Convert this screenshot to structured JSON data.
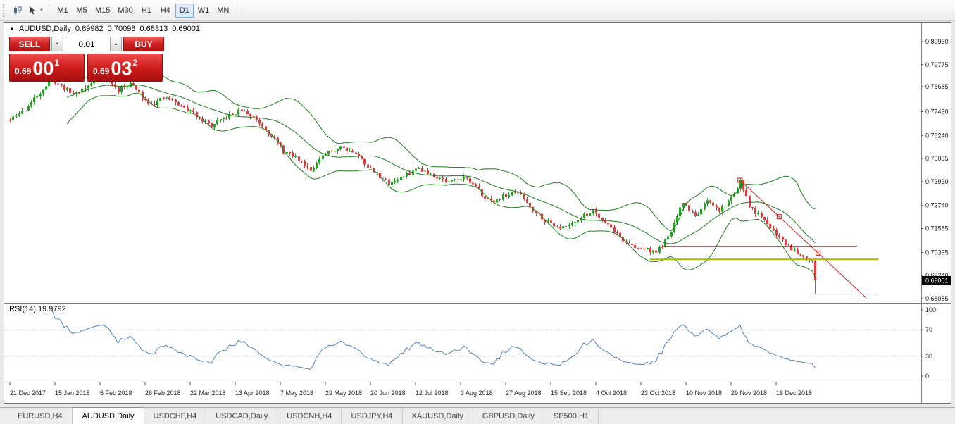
{
  "toolbar": {
    "timeframes": [
      "M1",
      "M5",
      "M15",
      "M30",
      "H1",
      "H4",
      "D1",
      "W1",
      "MN"
    ],
    "selected_timeframe": "D1"
  },
  "chart_header": {
    "direction_icon": "▲",
    "symbol": "AUDUSD,Daily",
    "open": "0.69982",
    "high": "0.70098",
    "low": "0.68313",
    "close": "0.69001"
  },
  "trade_panel": {
    "sell_label": "SELL",
    "buy_label": "BUY",
    "lot_size": "0.01",
    "sell_price": {
      "prefix": "0.69",
      "pips": "00",
      "pipette": "1"
    },
    "buy_price": {
      "prefix": "0.69",
      "pips": "03",
      "pipette": "2"
    }
  },
  "chart_data": {
    "type": "candlestick",
    "symbol": "AUDUSD",
    "timeframe": "Daily",
    "last_ohlc": {
      "open": 0.69982,
      "high": 0.70098,
      "low": 0.68313,
      "close": 0.69001
    },
    "current_price": "0.69001",
    "price_axis": {
      "labels": [
        "0.80930",
        "0.79775",
        "0.78685",
        "0.77430",
        "0.76240",
        "0.75085",
        "0.73930",
        "0.72740",
        "0.71585",
        "0.70395",
        "0.69240",
        "0.68085"
      ],
      "ylim": [
        0.67875,
        0.8188
      ]
    },
    "date_labels": [
      "21 Dec 2017",
      "15 Jan 2018",
      "6 Feb 2018",
      "28 Feb 2018",
      "22 Mar 2018",
      "13 Apr 2018",
      "7 May 2018",
      "29 May 2018",
      "20 Jun 2018",
      "12 Jul 2018",
      "3 Aug 2018",
      "27 Aug 2018",
      "15 Sep 2018",
      "4 Oct 2018",
      "23 Oct 2018",
      "10 Nov 2018",
      "29 Nov 2018",
      "18 Dec 2018"
    ],
    "candles_per_label": 15,
    "num_candles": 269,
    "close_anchors": [
      [
        0,
        0.77
      ],
      [
        5,
        0.7755
      ],
      [
        10,
        0.784
      ],
      [
        14,
        0.7905
      ],
      [
        17,
        0.787
      ],
      [
        21,
        0.783
      ],
      [
        26,
        0.787
      ],
      [
        30,
        0.7915
      ],
      [
        33,
        0.7895
      ],
      [
        36,
        0.785
      ],
      [
        40,
        0.7885
      ],
      [
        45,
        0.78
      ],
      [
        48,
        0.7785
      ],
      [
        52,
        0.7815
      ],
      [
        57,
        0.777
      ],
      [
        62,
        0.7725
      ],
      [
        67,
        0.767
      ],
      [
        72,
        0.7715
      ],
      [
        77,
        0.775
      ],
      [
        82,
        0.7705
      ],
      [
        87,
        0.7625
      ],
      [
        91,
        0.7545
      ],
      [
        96,
        0.7505
      ],
      [
        100,
        0.7455
      ],
      [
        105,
        0.753
      ],
      [
        110,
        0.757
      ],
      [
        115,
        0.7535
      ],
      [
        120,
        0.7455
      ],
      [
        126,
        0.7385
      ],
      [
        131,
        0.742
      ],
      [
        136,
        0.7462
      ],
      [
        141,
        0.7425
      ],
      [
        146,
        0.739
      ],
      [
        151,
        0.742
      ],
      [
        155,
        0.736
      ],
      [
        160,
        0.729
      ],
      [
        164,
        0.732
      ],
      [
        169,
        0.734
      ],
      [
        174,
        0.7255
      ],
      [
        179,
        0.719
      ],
      [
        184,
        0.7162
      ],
      [
        189,
        0.7205
      ],
      [
        194,
        0.725
      ],
      [
        199,
        0.718
      ],
      [
        204,
        0.71
      ],
      [
        208,
        0.706
      ],
      [
        211,
        0.706
      ],
      [
        215,
        0.704
      ],
      [
        219,
        0.711
      ],
      [
        224,
        0.729
      ],
      [
        228,
        0.722
      ],
      [
        232,
        0.729
      ],
      [
        236,
        0.725
      ],
      [
        240,
        0.731
      ],
      [
        243,
        0.7395
      ],
      [
        246,
        0.727
      ],
      [
        250,
        0.721
      ],
      [
        254,
        0.715
      ],
      [
        258,
        0.7085
      ],
      [
        262,
        0.704
      ],
      [
        267,
        0.7005
      ],
      [
        268,
        0.69001
      ]
    ],
    "synthesis": {
      "seed": 11,
      "close_amp": 0.0011,
      "wick_amp": 0.0016
    },
    "colors": {
      "up": "#1fa51f",
      "down": "#e03c3c",
      "bollinger": "#1b7e1b",
      "rsi": "#4f81bd",
      "trend": "#c22020",
      "hline_red": "#b22222",
      "hline_olive": "#aab800",
      "hline_blue": "#6aa5d8",
      "tag_bg": "#000000",
      "tag_text": "#ffffff"
    },
    "indicators": {
      "bollinger": {
        "period": 20,
        "deviation": 2
      },
      "rsi": {
        "period": 14,
        "label": "RSI(14) 19.9792",
        "value": 19.9792,
        "levels": [
          100,
          70,
          30,
          0
        ]
      }
    },
    "objects": {
      "trendline": {
        "i1": 243,
        "p1": 0.74,
        "i2": 269,
        "p2": 0.7036,
        "extend_to": 285
      },
      "handles": [
        [
          243,
          0.74
        ],
        [
          256,
          0.7218
        ],
        [
          269,
          0.7036
        ]
      ],
      "hlines": [
        {
          "price": 0.707,
          "i1": 217,
          "i2": 282,
          "color": "hline_red",
          "width": 1
        },
        {
          "price": 0.7005,
          "i1": 213,
          "i2": 289,
          "color": "hline_olive",
          "width": 2
        },
        {
          "price": 0.68313,
          "i1": 266,
          "i2": 289,
          "color": "hline_blue",
          "width": 1
        }
      ]
    }
  },
  "tab_bar": {
    "tabs": [
      "EURUSD,H4",
      "AUDUSD,Daily",
      "USDCHF,H4",
      "USDCAD,Daily",
      "USDCNH,H4",
      "USDJPY,H4",
      "XAUUSD,Daily",
      "GBPUSD,Daily",
      "SP500,H1"
    ],
    "active_tab": "AUDUSD,Daily"
  }
}
